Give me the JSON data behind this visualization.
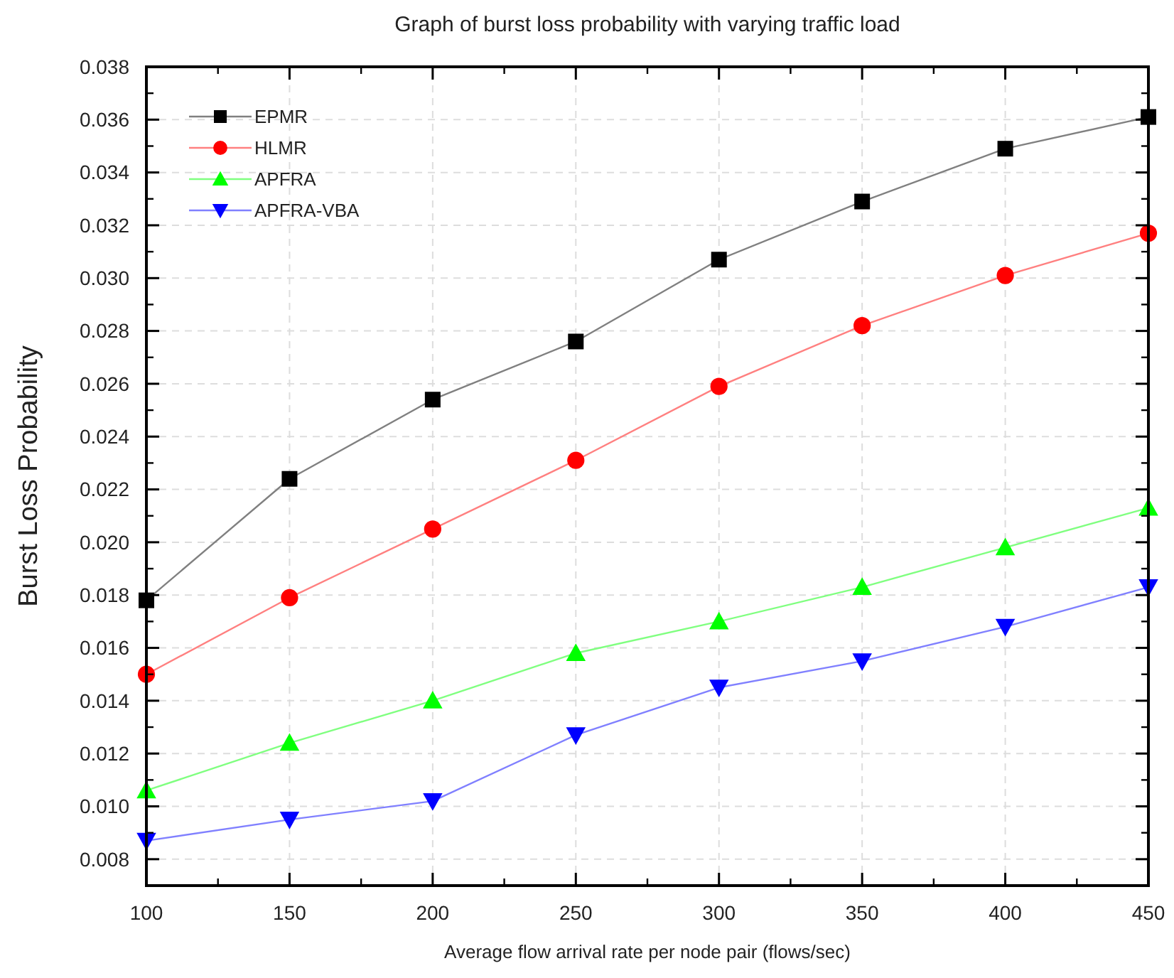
{
  "chart_data": {
    "type": "line",
    "title": "Graph of burst loss probability with varying traffic load",
    "xlabel": "Average flow arrival rate per node pair (flows/sec)",
    "ylabel": "Burst Loss Probability",
    "x": [
      100,
      150,
      200,
      250,
      300,
      350,
      400,
      450
    ],
    "series": [
      {
        "name": "EPMR",
        "color": "#000000",
        "marker": "square",
        "values": [
          0.0178,
          0.0224,
          0.0254,
          0.0276,
          0.0307,
          0.0329,
          0.0349,
          0.0361
        ]
      },
      {
        "name": "HLMR",
        "color": "#ff0000",
        "marker": "circle",
        "values": [
          0.015,
          0.0179,
          0.0205,
          0.0231,
          0.0259,
          0.0282,
          0.0301,
          0.0317
        ]
      },
      {
        "name": "APFRA",
        "color": "#00ff00",
        "marker": "triangle",
        "values": [
          0.0106,
          0.0124,
          0.014,
          0.0158,
          0.017,
          0.0183,
          0.0198,
          0.0213
        ]
      },
      {
        "name": "APFRA-VBA",
        "color": "#0000ff",
        "marker": "triangle-down",
        "values": [
          0.0087,
          0.0095,
          0.0102,
          0.0127,
          0.0145,
          0.0155,
          0.0168,
          0.0183
        ]
      }
    ],
    "xlim": [
      100,
      450
    ],
    "xticks": [
      100,
      150,
      200,
      250,
      300,
      350,
      400,
      450
    ],
    "ylim": [
      0.007,
      0.038
    ],
    "yticks": [
      {
        "value": 0.008,
        "label": "0.008"
      },
      {
        "value": 0.01,
        "label": "0.010"
      },
      {
        "value": 0.012,
        "label": "0.012"
      },
      {
        "value": 0.014,
        "label": "0.014"
      },
      {
        "value": 0.016,
        "label": "0.016"
      },
      {
        "value": 0.018,
        "label": "0.018"
      },
      {
        "value": 0.02,
        "label": "0.020"
      },
      {
        "value": 0.022,
        "label": "0.022"
      },
      {
        "value": 0.024,
        "label": "0.024"
      },
      {
        "value": 0.026,
        "label": "0.026"
      },
      {
        "value": 0.028,
        "label": "0.028"
      },
      {
        "value": 0.03,
        "label": "0.030"
      },
      {
        "value": 0.032,
        "label": "0.032"
      },
      {
        "value": 0.034,
        "label": "0.034"
      },
      {
        "value": 0.036,
        "label": "0.036"
      },
      {
        "value": 0.038,
        "label": "0.038"
      }
    ],
    "grid": true,
    "legend": "top left",
    "line_style": "solid"
  }
}
